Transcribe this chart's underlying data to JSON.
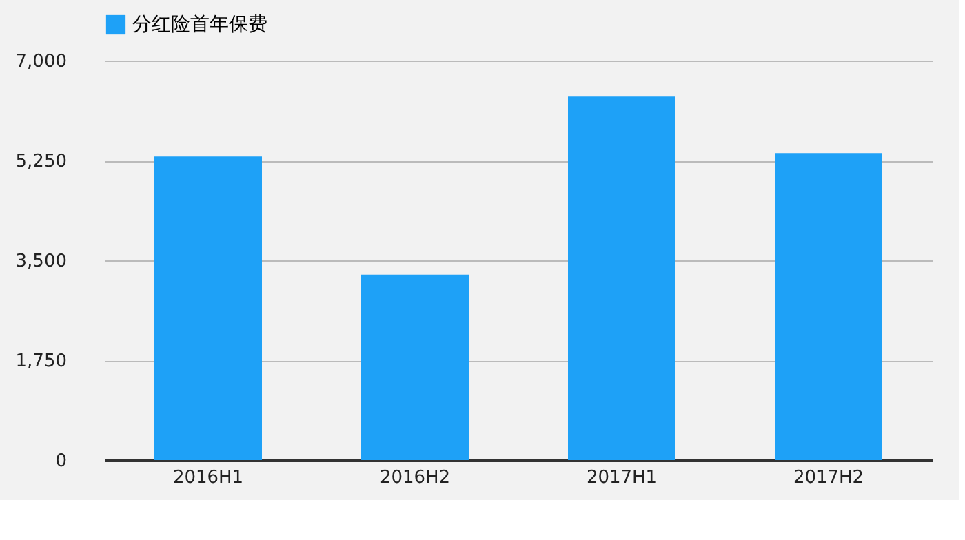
{
  "chart_data": {
    "type": "bar",
    "categories": [
      "2016H1",
      "2016H2",
      "2017H1",
      "2017H2"
    ],
    "series": [
      {
        "name": "分红险首年保费",
        "color": "#1ea1f7",
        "values": [
          5320,
          3250,
          6370,
          5380
        ]
      }
    ],
    "ylim": [
      0,
      7000
    ],
    "yticks": [
      {
        "value": 0,
        "label": "0"
      },
      {
        "value": 1750,
        "label": "1,750"
      },
      {
        "value": 3500,
        "label": "3,500"
      },
      {
        "value": 5250,
        "label": "5,250"
      },
      {
        "value": 7000,
        "label": "7,000"
      }
    ],
    "grid": "y",
    "legend": "top"
  }
}
